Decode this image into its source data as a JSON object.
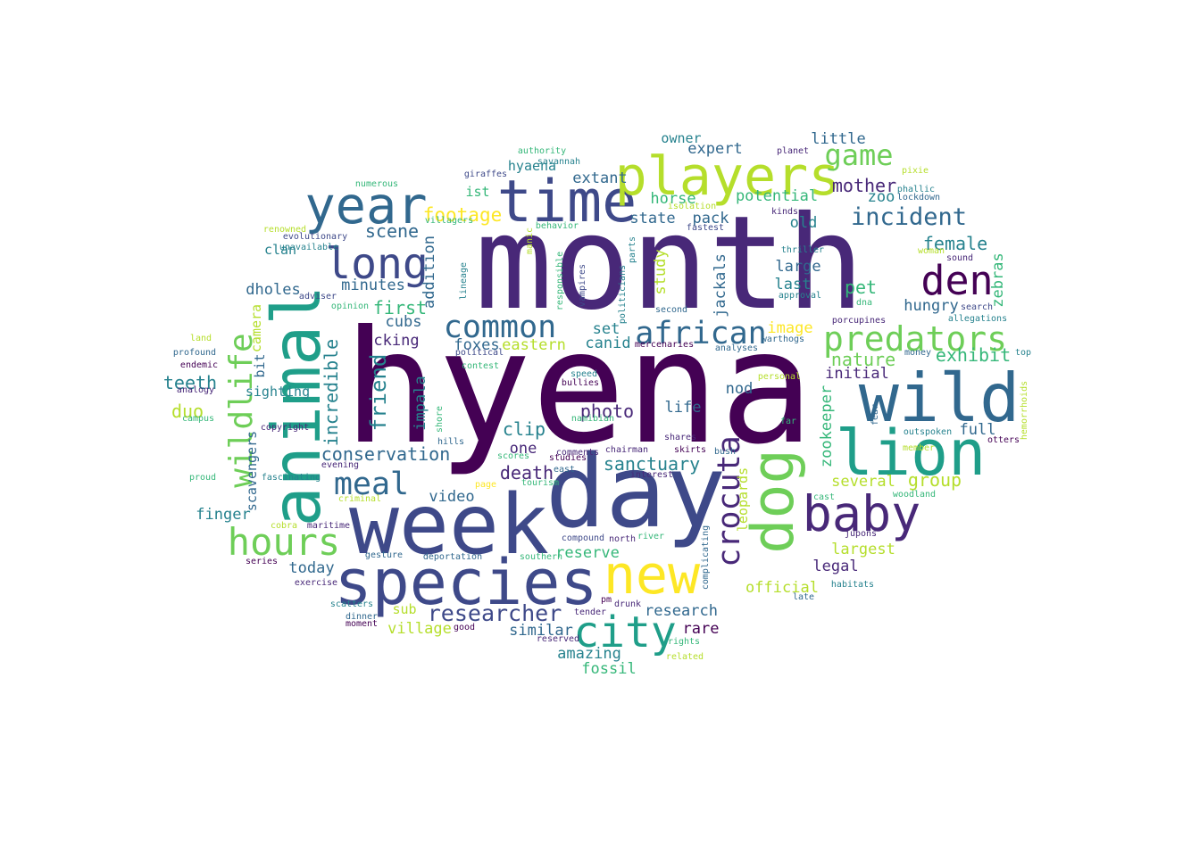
{
  "palette": {
    "dark_purple": "#440154",
    "purple": "#482878",
    "indigo": "#3e4989",
    "blue": "#31688e",
    "teal": "#26828e",
    "green_teal": "#1f9e89",
    "green": "#35b779",
    "light_green": "#6ece58",
    "yellow_green": "#b5de2b",
    "yellow": "#fde725"
  },
  "words": [
    {
      "text": "hyena",
      "color": "#440154"
    },
    {
      "text": "month",
      "color": "#482878"
    },
    {
      "text": "day",
      "color": "#3e4989"
    },
    {
      "text": "week",
      "color": "#3e4989"
    },
    {
      "text": "animal",
      "color": "#1f9e89"
    },
    {
      "text": "wild",
      "color": "#31688e"
    },
    {
      "text": "species",
      "color": "#3e4989"
    },
    {
      "text": "lion",
      "color": "#1f9e89"
    },
    {
      "text": "time",
      "color": "#3e4989"
    },
    {
      "text": "year",
      "color": "#31688e"
    },
    {
      "text": "players",
      "color": "#b5de2b"
    },
    {
      "text": "dog",
      "color": "#6ece58"
    },
    {
      "text": "baby",
      "color": "#482878"
    },
    {
      "text": "new",
      "color": "#fde725"
    },
    {
      "text": "city",
      "color": "#1f9e89"
    },
    {
      "text": "long",
      "color": "#3e4989"
    },
    {
      "text": "den",
      "color": "#440154"
    },
    {
      "text": "wildlife",
      "color": "#6ece58"
    },
    {
      "text": "hours",
      "color": "#6ece58"
    },
    {
      "text": "predators",
      "color": "#6ece58"
    },
    {
      "text": "common",
      "color": "#31688e"
    },
    {
      "text": "african",
      "color": "#31688e"
    },
    {
      "text": "crocuta",
      "color": "#482878"
    },
    {
      "text": "meal",
      "color": "#31688e"
    },
    {
      "text": "game",
      "color": "#6ece58"
    },
    {
      "text": "incident",
      "color": "#31688e"
    },
    {
      "text": "researcher",
      "color": "#3e4989"
    },
    {
      "text": "footage",
      "color": "#fde725"
    },
    {
      "text": "conservation",
      "color": "#31688e"
    },
    {
      "text": "sanctuary",
      "color": "#26828e"
    },
    {
      "text": "mother",
      "color": "#482878"
    },
    {
      "text": "female",
      "color": "#26828e"
    },
    {
      "text": "nature",
      "color": "#6ece58"
    },
    {
      "text": "exhibit",
      "color": "#35b779"
    },
    {
      "text": "friend",
      "color": "#26828e"
    },
    {
      "text": "incredible",
      "color": "#26828e"
    },
    {
      "text": "scene",
      "color": "#31688e"
    },
    {
      "text": "minutes",
      "color": "#31688e"
    },
    {
      "text": "first",
      "color": "#35b779"
    },
    {
      "text": "death",
      "color": "#482878"
    },
    {
      "text": "clip",
      "color": "#26828e"
    },
    {
      "text": "photo",
      "color": "#482878"
    },
    {
      "text": "teeth",
      "color": "#26828e"
    },
    {
      "text": "duo",
      "color": "#b5de2b"
    },
    {
      "text": "finger",
      "color": "#26828e"
    },
    {
      "text": "today",
      "color": "#31688e"
    },
    {
      "text": "video",
      "color": "#31688e"
    },
    {
      "text": "one",
      "color": "#482878"
    },
    {
      "text": "amazing",
      "color": "#26828e"
    },
    {
      "text": "fossil",
      "color": "#35b779"
    },
    {
      "text": "village",
      "color": "#b5de2b"
    },
    {
      "text": "similar",
      "color": "#31688e"
    },
    {
      "text": "research",
      "color": "#31688e"
    },
    {
      "text": "rare",
      "color": "#440154"
    },
    {
      "text": "reserve",
      "color": "#35b779"
    },
    {
      "text": "legal",
      "color": "#482878"
    },
    {
      "text": "largest",
      "color": "#b5de2b"
    },
    {
      "text": "several",
      "color": "#b5de2b"
    },
    {
      "text": "group",
      "color": "#b5de2b"
    },
    {
      "text": "official",
      "color": "#b5de2b"
    },
    {
      "text": "full",
      "color": "#31688e"
    },
    {
      "text": "initial",
      "color": "#482878"
    },
    {
      "text": "pet",
      "color": "#35b779"
    },
    {
      "text": "hungry",
      "color": "#31688e"
    },
    {
      "text": "last",
      "color": "#26828e"
    },
    {
      "text": "large",
      "color": "#31688e"
    },
    {
      "text": "image",
      "color": "#fde725"
    },
    {
      "text": "nod",
      "color": "#31688e"
    },
    {
      "text": "life",
      "color": "#31688e"
    },
    {
      "text": "set",
      "color": "#26828e"
    },
    {
      "text": "canid",
      "color": "#26828e"
    },
    {
      "text": "eastern",
      "color": "#b5de2b"
    },
    {
      "text": "foxes",
      "color": "#31688e"
    },
    {
      "text": "cubs",
      "color": "#31688e"
    },
    {
      "text": "cking",
      "color": "#482878"
    },
    {
      "text": "dholes",
      "color": "#31688e"
    },
    {
      "text": "clan",
      "color": "#26828e"
    },
    {
      "text": "sighting",
      "color": "#26828e"
    },
    {
      "text": "camera",
      "color": "#b5de2b"
    },
    {
      "text": "bit",
      "color": "#31688e"
    },
    {
      "text": "scavengers",
      "color": "#31688e"
    },
    {
      "text": "state",
      "color": "#31688e"
    },
    {
      "text": "pack",
      "color": "#31688e"
    },
    {
      "text": "ist",
      "color": "#35b779"
    },
    {
      "text": "hyaena",
      "color": "#26828e"
    },
    {
      "text": "extant",
      "color": "#31688e"
    },
    {
      "text": "horse",
      "color": "#35b779"
    },
    {
      "text": "potential",
      "color": "#35b779"
    },
    {
      "text": "zoo",
      "color": "#26828e"
    },
    {
      "text": "old",
      "color": "#26828e"
    },
    {
      "text": "expert",
      "color": "#31688e"
    },
    {
      "text": "owner",
      "color": "#26828e"
    },
    {
      "text": "little",
      "color": "#31688e"
    },
    {
      "text": "study",
      "color": "#b5de2b"
    },
    {
      "text": "jackals",
      "color": "#31688e"
    },
    {
      "text": "zebras",
      "color": "#35b779"
    },
    {
      "text": "impala",
      "color": "#26828e"
    },
    {
      "text": "addition",
      "color": "#31688e"
    },
    {
      "text": "zookeeper",
      "color": "#35b779"
    },
    {
      "text": "leopards",
      "color": "#b5de2b"
    },
    {
      "text": "sub",
      "color": "#b5de2b"
    },
    {
      "text": "authority",
      "color": "#35b779"
    },
    {
      "text": "savannah",
      "color": "#26828e"
    },
    {
      "text": "giraffes",
      "color": "#3e4989"
    },
    {
      "text": "numerous",
      "color": "#35b779"
    },
    {
      "text": "planet",
      "color": "#482878"
    },
    {
      "text": "pixie",
      "color": "#b5de2b"
    },
    {
      "text": "phallic",
      "color": "#26828e"
    },
    {
      "text": "lockdown",
      "color": "#31688e"
    },
    {
      "text": "isolation",
      "color": "#b5de2b"
    },
    {
      "text": "villagers",
      "color": "#35b779"
    },
    {
      "text": "kinds",
      "color": "#482878"
    },
    {
      "text": "fastest",
      "color": "#3e4989"
    },
    {
      "text": "renowned",
      "color": "#b5de2b"
    },
    {
      "text": "evolutionary",
      "color": "#3e4989"
    },
    {
      "text": "unavailable",
      "color": "#26828e"
    },
    {
      "text": "behavior",
      "color": "#35b779"
    },
    {
      "text": "manic",
      "color": "#b5de2b"
    },
    {
      "text": "parts",
      "color": "#26828e"
    },
    {
      "text": "thriller",
      "color": "#26828e"
    },
    {
      "text": "woman",
      "color": "#b5de2b"
    },
    {
      "text": "sound",
      "color": "#482878"
    },
    {
      "text": "adviser",
      "color": "#3e4989"
    },
    {
      "text": "opinion",
      "color": "#35b779"
    },
    {
      "text": "lineage",
      "color": "#26828e"
    },
    {
      "text": "responsible",
      "color": "#35b779"
    },
    {
      "text": "vampires",
      "color": "#3e4989"
    },
    {
      "text": "politicians",
      "color": "#26828e"
    },
    {
      "text": "second",
      "color": "#31688e"
    },
    {
      "text": "approval",
      "color": "#26828e"
    },
    {
      "text": "dna",
      "color": "#35b779"
    },
    {
      "text": "search",
      "color": "#3e4989"
    },
    {
      "text": "allegations",
      "color": "#26828e"
    },
    {
      "text": "porcupines",
      "color": "#482878"
    },
    {
      "text": "land",
      "color": "#b5de2b"
    },
    {
      "text": "profound",
      "color": "#31688e"
    },
    {
      "text": "endemic",
      "color": "#440154"
    },
    {
      "text": "analogy",
      "color": "#482878"
    },
    {
      "text": "campus",
      "color": "#35b779"
    },
    {
      "text": "political",
      "color": "#3e4989"
    },
    {
      "text": "contest",
      "color": "#35b779"
    },
    {
      "text": "mercenaries",
      "color": "#440154"
    },
    {
      "text": "analyses",
      "color": "#31688e"
    },
    {
      "text": "warthogs",
      "color": "#31688e"
    },
    {
      "text": "money",
      "color": "#31688e"
    },
    {
      "text": "top",
      "color": "#26828e"
    },
    {
      "text": "speed",
      "color": "#26828e"
    },
    {
      "text": "bullies",
      "color": "#440154"
    },
    {
      "text": "personal",
      "color": "#b5de2b"
    },
    {
      "text": "hemorrhoids",
      "color": "#b5de2b"
    },
    {
      "text": "fear",
      "color": "#31688e"
    },
    {
      "text": "namibian",
      "color": "#35b779"
    },
    {
      "text": "far",
      "color": "#35b779"
    },
    {
      "text": "outspoken",
      "color": "#26828e"
    },
    {
      "text": "otters",
      "color": "#440154"
    },
    {
      "text": "copyright",
      "color": "#482878"
    },
    {
      "text": "shore",
      "color": "#35b779"
    },
    {
      "text": "hills",
      "color": "#31688e"
    },
    {
      "text": "shares",
      "color": "#482878"
    },
    {
      "text": "chairman",
      "color": "#482878"
    },
    {
      "text": "skirts",
      "color": "#440154"
    },
    {
      "text": "bush",
      "color": "#31688e"
    },
    {
      "text": "member",
      "color": "#b5de2b"
    },
    {
      "text": "comments",
      "color": "#482878"
    },
    {
      "text": "evening",
      "color": "#482878"
    },
    {
      "text": "scores",
      "color": "#35b779"
    },
    {
      "text": "studies",
      "color": "#440154"
    },
    {
      "text": "fascinating",
      "color": "#26828e"
    },
    {
      "text": "east",
      "color": "#31688e"
    },
    {
      "text": "interest",
      "color": "#482878"
    },
    {
      "text": "proud",
      "color": "#35b779"
    },
    {
      "text": "tourism",
      "color": "#35b779"
    },
    {
      "text": "criminal",
      "color": "#b5de2b"
    },
    {
      "text": "page",
      "color": "#fde725"
    },
    {
      "text": "woodland",
      "color": "#35b779"
    },
    {
      "text": "cast",
      "color": "#35b779"
    },
    {
      "text": "cobra",
      "color": "#b5de2b"
    },
    {
      "text": "maritime",
      "color": "#482878"
    },
    {
      "text": "complicating",
      "color": "#31688e"
    },
    {
      "text": "jupons",
      "color": "#482878"
    },
    {
      "text": "compound",
      "color": "#3e4989"
    },
    {
      "text": "north",
      "color": "#482878"
    },
    {
      "text": "river",
      "color": "#35b779"
    },
    {
      "text": "series",
      "color": "#440154"
    },
    {
      "text": "gesture",
      "color": "#31688e"
    },
    {
      "text": "deportation",
      "color": "#31688e"
    },
    {
      "text": "southern",
      "color": "#35b779"
    },
    {
      "text": "exercise",
      "color": "#482878"
    },
    {
      "text": "habitats",
      "color": "#26828e"
    },
    {
      "text": "late",
      "color": "#31688e"
    },
    {
      "text": "pm",
      "color": "#440154"
    },
    {
      "text": "drunk",
      "color": "#482878"
    },
    {
      "text": "scatters",
      "color": "#26828e"
    },
    {
      "text": "tender",
      "color": "#482878"
    },
    {
      "text": "dinner",
      "color": "#31688e"
    },
    {
      "text": "moment",
      "color": "#440154"
    },
    {
      "text": "good",
      "color": "#440154"
    },
    {
      "text": "reserved",
      "color": "#482878"
    },
    {
      "text": "rights",
      "color": "#35b779"
    },
    {
      "text": "related",
      "color": "#b5de2b"
    }
  ]
}
